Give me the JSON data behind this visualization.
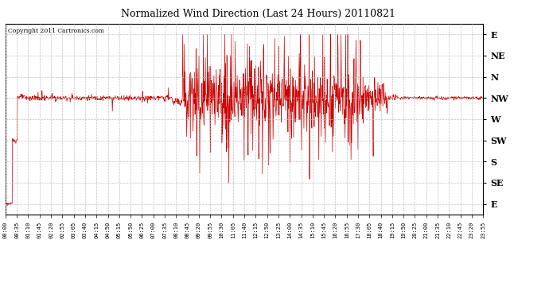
{
  "title": "Normalized Wind Direction (Last 24 Hours) 20110821",
  "copyright_text": "Copyright 2011 Cartronics.com",
  "line_color": "#cc0000",
  "bg_color": "#ffffff",
  "grid_color": "#bbbbbb",
  "ytick_labels": [
    "E",
    "NE",
    "N",
    "NW",
    "W",
    "SW",
    "S",
    "SE",
    "E"
  ],
  "ytick_values": [
    9,
    8,
    7,
    6,
    5,
    4,
    3,
    2,
    1
  ],
  "xtick_labels": [
    "00:00",
    "00:35",
    "01:10",
    "01:45",
    "02:20",
    "02:55",
    "03:05",
    "03:40",
    "04:15",
    "04:50",
    "05:15",
    "05:50",
    "06:25",
    "07:00",
    "07:35",
    "08:10",
    "08:45",
    "09:20",
    "09:55",
    "10:30",
    "11:05",
    "11:40",
    "12:15",
    "12:50",
    "13:25",
    "14:00",
    "14:35",
    "15:10",
    "15:45",
    "16:20",
    "16:55",
    "17:30",
    "18:05",
    "18:40",
    "19:15",
    "19:50",
    "20:25",
    "21:00",
    "21:35",
    "22:10",
    "22:45",
    "23:20",
    "23:55"
  ],
  "n_points": 1440,
  "nw_level": 6.0,
  "sw_level": 4.0,
  "e_level": 1.0
}
